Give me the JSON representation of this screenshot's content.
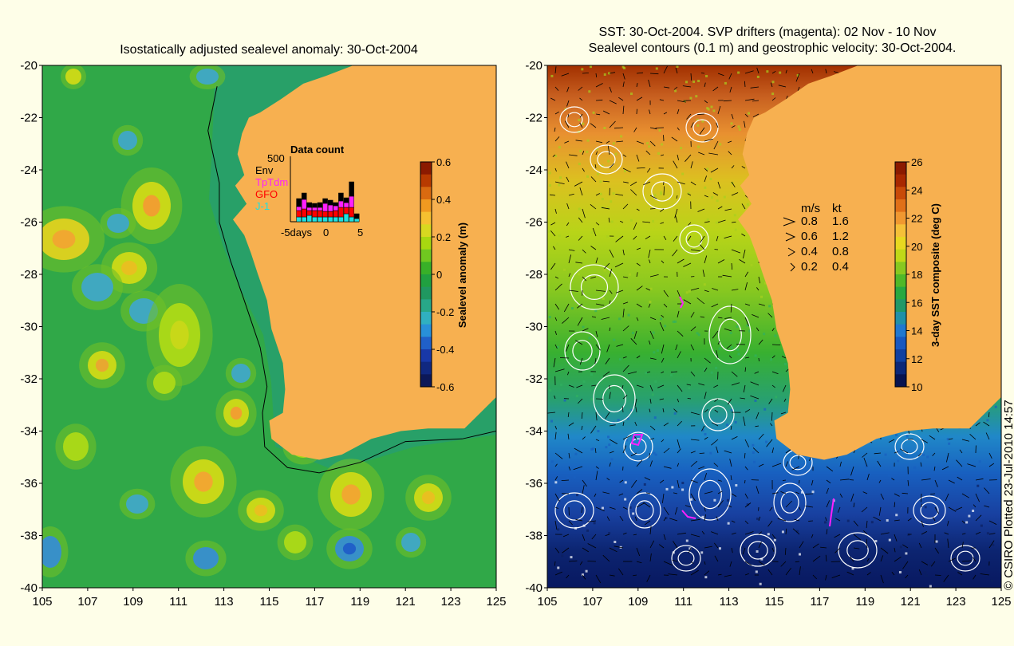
{
  "left_panel": {
    "title": "Isostatically adjusted sealevel anomaly: 30-Oct-2004",
    "lat_ticks": [
      "-20",
      "-22",
      "-24",
      "-26",
      "-28",
      "-30",
      "-32",
      "-34",
      "-36",
      "-38",
      "-40"
    ],
    "lon_ticks": [
      "105",
      "107",
      "109",
      "111",
      "113",
      "115",
      "117",
      "119",
      "121",
      "123",
      "125"
    ],
    "colorbar": {
      "label": "Sealevel anomaly (m)",
      "ticks": [
        "0.6",
        "0.4",
        "0.2",
        "0",
        "-0.2",
        "-0.4",
        "-0.6"
      ],
      "colors": [
        "#8b1a00",
        "#b83a00",
        "#d96a10",
        "#f09a20",
        "#f5c030",
        "#d8d820",
        "#a8d810",
        "#70c820",
        "#38b028",
        "#20a040",
        "#209860",
        "#28a888",
        "#30b0c0",
        "#2890d8",
        "#2060c8",
        "#1838a8",
        "#102880",
        "#0c1858"
      ]
    },
    "data_count": {
      "title": "Data count",
      "scale": "500",
      "legend": [
        {
          "label": "Env",
          "color": "#000000"
        },
        {
          "label": "TpTdm",
          "color": "#ff20ff"
        },
        {
          "label": "GFO",
          "color": "#ff0000"
        },
        {
          "label": "J-1",
          "color": "#20e0e0"
        }
      ],
      "x_label": "-5days",
      "x_ticks": [
        "0",
        "5"
      ]
    },
    "colors": {
      "land": "#f7b050",
      "ocean": "#28a848"
    }
  },
  "right_panel": {
    "title_line1": "SST: 30-Oct-2004. SVP drifters (magenta): 02 Nov - 10 Nov",
    "title_line2": "Sealevel contours (0.1 m) and geostrophic velocity: 30-Oct-2004.",
    "lat_ticks": [
      "-20",
      "-22",
      "-24",
      "-26",
      "-28",
      "-30",
      "-32",
      "-34",
      "-36",
      "-38",
      "-40"
    ],
    "lon_ticks": [
      "105",
      "107",
      "109",
      "111",
      "113",
      "115",
      "117",
      "119",
      "121",
      "123",
      "125"
    ],
    "colorbar": {
      "label": "3-day SST composite (deg C)",
      "ticks": [
        "26",
        "24",
        "22",
        "20",
        "18",
        "16",
        "14",
        "12",
        "10"
      ],
      "colors": [
        "#8b1a00",
        "#a82800",
        "#c84a08",
        "#e07018",
        "#f09830",
        "#f5c038",
        "#e8d820",
        "#c0d818",
        "#88c820",
        "#50b828",
        "#28a840",
        "#209868",
        "#2090a8",
        "#2078d0",
        "#1858c0",
        "#1040a0",
        "#0c2878",
        "#081450"
      ]
    },
    "velocity_legend": {
      "header_ms": "m/s",
      "header_kt": "kt",
      "rows": [
        {
          "ms": "0.8",
          "kt": "1.6"
        },
        {
          "ms": "0.6",
          "kt": "1.2"
        },
        {
          "ms": "0.4",
          "kt": "0.8"
        },
        {
          "ms": "0.2",
          "kt": "0.4"
        }
      ]
    },
    "colors": {
      "land": "#f7b050"
    }
  },
  "credit": "© CSIRO Plotted 23-Jul-2010 14:57"
}
